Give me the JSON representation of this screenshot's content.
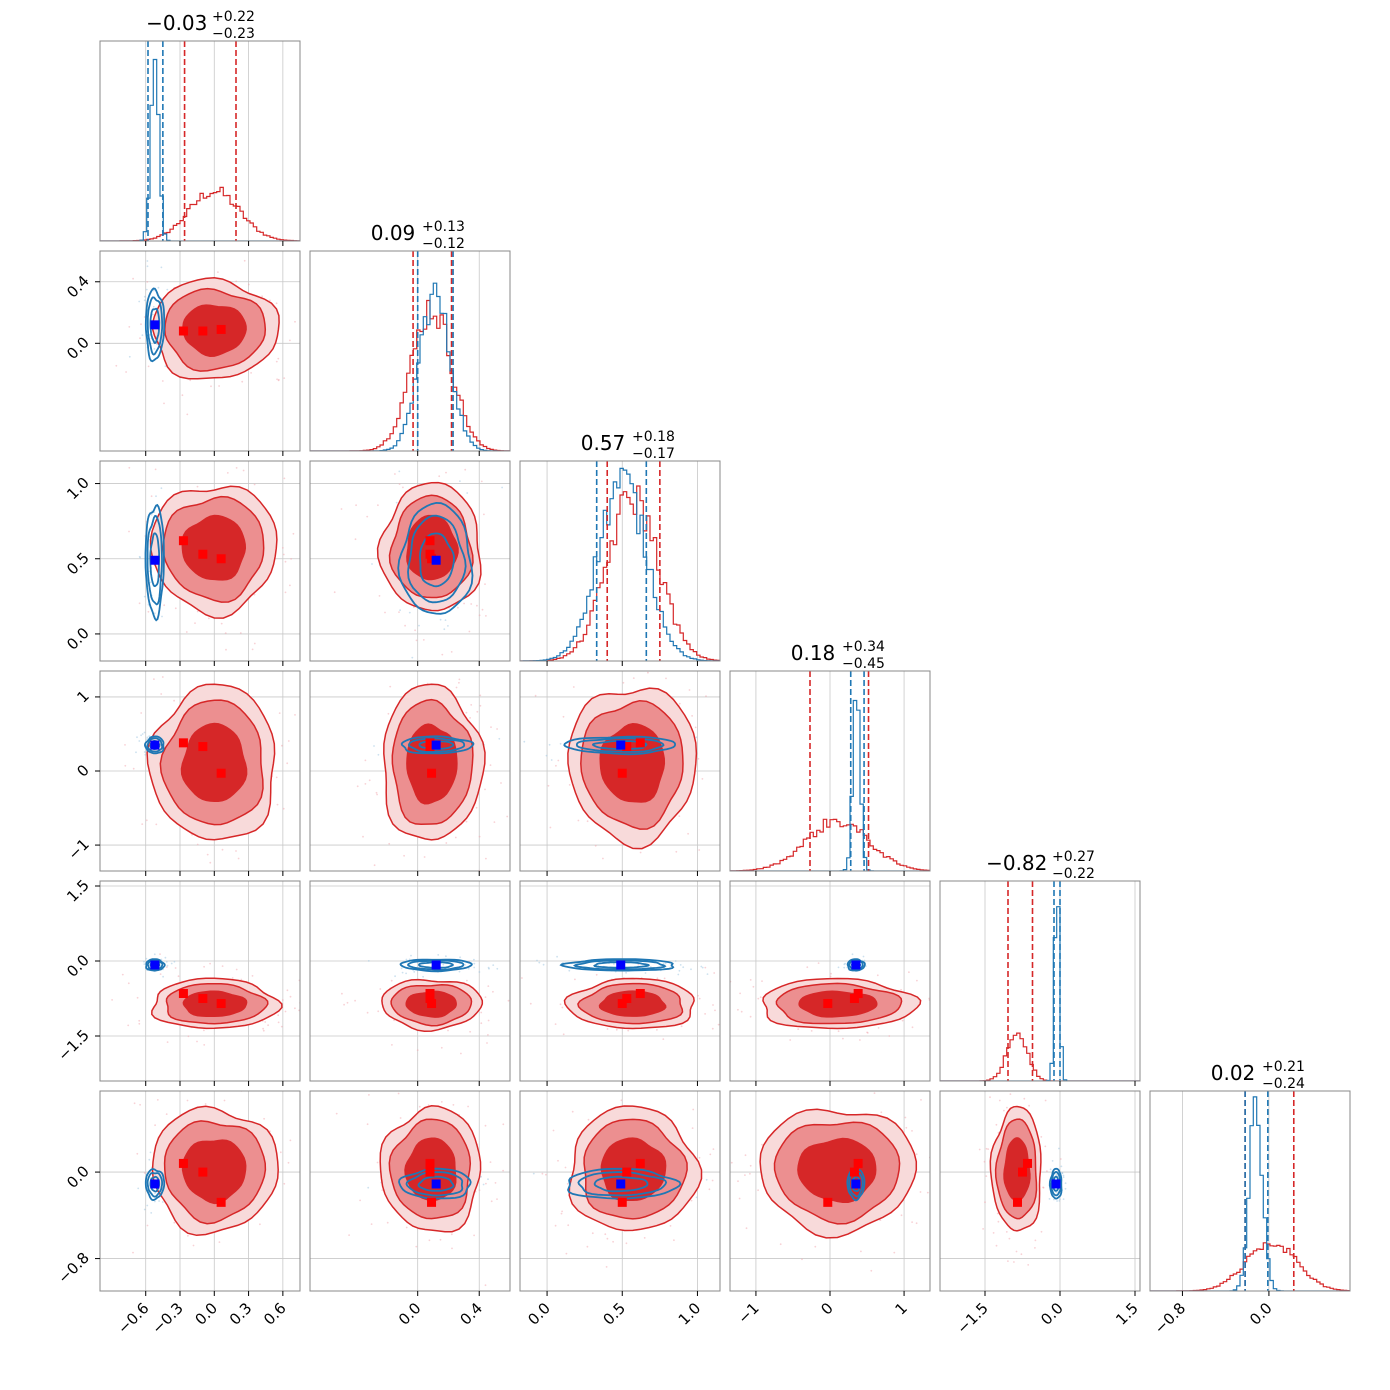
{
  "colors": {
    "red": "#d62728",
    "red_mid": "#ec8f90",
    "red_light": "#f8dada",
    "blue": "#1f77b4",
    "marker_red": "#ff0000",
    "marker_blue": "#0000ff",
    "grid": "#c8c8c8"
  },
  "chart_data": {
    "type": "corner",
    "n_params": 6,
    "series": [
      {
        "name": "",
        "color": "red",
        "style": "filled contours + step histograms"
      },
      {
        "name": "",
        "color": "blue",
        "style": "line contours + step histograms"
      }
    ],
    "params": [
      {
        "range": [
          -1.0,
          0.75
        ],
        "ticks": [
          -0.6,
          -0.3,
          0.0,
          0.3,
          0.6
        ],
        "tick_labels": [
          "−0.6",
          "−0.3",
          "0.0",
          "0.3",
          "0.6"
        ],
        "y_ticks": [],
        "y_tick_labels": [],
        "title": {
          "median": "−0.03",
          "plus": "+0.22",
          "minus": "−0.23"
        },
        "red": {
          "mean": 0.0,
          "sd": 0.22,
          "q": [
            -0.26,
            0.19
          ],
          "truth": [
            -0.27,
            -0.1,
            0.06
          ]
        },
        "blue": {
          "mean": -0.52,
          "sd": 0.035,
          "q": [
            -0.58,
            -0.45
          ],
          "point": -0.52
        }
      },
      {
        "range": [
          -0.7,
          0.6
        ],
        "ticks": [
          0.0,
          0.4
        ],
        "tick_labels": [
          "0.0",
          "0.4"
        ],
        "y_ticks": [
          0.0,
          0.4
        ],
        "y_tick_labels": [
          "0.0",
          "0.4"
        ],
        "title": {
          "median": "0.09",
          "plus": "+0.13",
          "minus": "−0.12"
        },
        "red": {
          "mean": 0.09,
          "sd": 0.13,
          "q": [
            -0.03,
            0.22
          ],
          "truth": [
            0.08,
            0.08,
            0.09
          ]
        },
        "blue": {
          "mean": 0.11,
          "sd": 0.1,
          "q": [
            0.0,
            0.23
          ],
          "point": 0.12
        }
      },
      {
        "range": [
          -0.18,
          1.15
        ],
        "ticks": [
          0.0,
          0.5,
          1.0
        ],
        "tick_labels": [
          "0.0",
          "0.5",
          "1.0"
        ],
        "y_ticks": [
          0.0,
          0.5,
          1.0
        ],
        "y_tick_labels": [
          "0.0",
          "0.5",
          "1.0"
        ],
        "title": {
          "median": "0.57",
          "plus": "+0.18",
          "minus": "−0.17"
        },
        "red": {
          "mean": 0.57,
          "sd": 0.17,
          "q": [
            0.4,
            0.75
          ],
          "truth": [
            0.62,
            0.53,
            0.5
          ]
        },
        "blue": {
          "mean": 0.5,
          "sd": 0.16,
          "q": [
            0.33,
            0.66
          ],
          "point": 0.49
        }
      },
      {
        "range": [
          -1.35,
          1.35
        ],
        "ticks": [
          -1,
          0,
          1
        ],
        "tick_labels": [
          "−1",
          "0",
          "1"
        ],
        "y_ticks": [
          -1,
          0,
          1
        ],
        "y_tick_labels": [
          "−1",
          "0",
          "1"
        ],
        "title": {
          "median": "0.18",
          "plus": "+0.34",
          "minus": "−0.45"
        },
        "red": {
          "mean": 0.1,
          "sd": 0.42,
          "q": [
            -0.27,
            0.52
          ],
          "truth": [
            0.38,
            0.33,
            -0.03
          ]
        },
        "blue": {
          "mean": 0.36,
          "sd": 0.05,
          "q": [
            0.28,
            0.46
          ],
          "point": 0.35
        }
      },
      {
        "range": [
          -2.4,
          1.6
        ],
        "ticks": [
          -1.5,
          0.0,
          1.5
        ],
        "tick_labels": [
          "−1.5",
          "0.0",
          "1.5"
        ],
        "y_ticks": [
          -1.5,
          0.0,
          1.5
        ],
        "y_tick_labels": [
          "−1.5",
          "0.0",
          "1.5"
        ],
        "title": {
          "median": "−0.82",
          "plus": "+0.27",
          "minus": "−0.22"
        },
        "red": {
          "mean": -0.86,
          "sd": 0.2,
          "q": [
            -1.04,
            -0.55
          ],
          "truth": [
            -0.65,
            -0.75,
            -0.85
          ]
        },
        "blue": {
          "mean": -0.06,
          "sd": 0.05,
          "q": [
            -0.12,
            0.0
          ],
          "point": -0.08
        }
      },
      {
        "range": [
          -1.1,
          0.75
        ],
        "ticks": [
          -0.8,
          0.0
        ],
        "tick_labels": [
          "−0.8",
          "0.0"
        ],
        "y_ticks": [
          -0.8,
          0.0
        ],
        "y_tick_labels": [
          "−0.8",
          "0.0"
        ],
        "title": {
          "median": "0.02",
          "plus": "+0.21",
          "minus": "−0.24"
        },
        "red": {
          "mean": 0.02,
          "sd": 0.23,
          "q": [
            -0.22,
            0.23
          ],
          "truth": [
            0.08,
            0.0,
            -0.28
          ]
        },
        "blue": {
          "mean": -0.12,
          "sd": 0.06,
          "q": [
            -0.22,
            -0.01
          ],
          "point": -0.11
        }
      }
    ],
    "grid": true,
    "legend": "none"
  }
}
